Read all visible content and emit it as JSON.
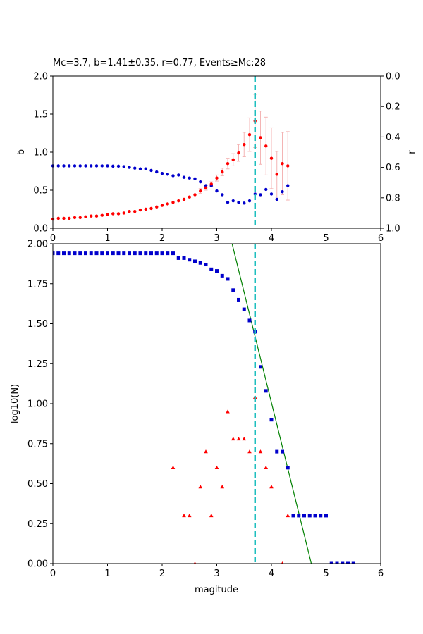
{
  "chart_data": [
    {
      "type": "scatter",
      "title": "Mc=3.7, b=1.41±0.35, r=0.77, Events≥Mc:28",
      "xlabel": "",
      "ylabel": "b",
      "ylabel_right": "r",
      "xlim": [
        0,
        6
      ],
      "ylim": [
        0,
        2
      ],
      "ylim_right": [
        1,
        0
      ],
      "xticks": [
        "0",
        "1",
        "2",
        "3",
        "4",
        "5",
        "6"
      ],
      "yticks": [
        "0.0",
        "0.5",
        "1.0",
        "1.5",
        "2.0"
      ],
      "yticks_right": [
        "0.0",
        "0.2",
        "0.4",
        "0.6",
        "0.8",
        "1.0"
      ],
      "grid": false,
      "mc_line_x": 3.7,
      "colors": {
        "b": "#ff0000",
        "r": "#0000cc",
        "mc": "#1fbfbf",
        "err": "#f4b4b4"
      },
      "b_series": {
        "x": [
          0.0,
          0.1,
          0.2,
          0.3,
          0.4,
          0.5,
          0.6,
          0.7,
          0.8,
          0.9,
          1.0,
          1.1,
          1.2,
          1.3,
          1.4,
          1.5,
          1.6,
          1.7,
          1.8,
          1.9,
          2.0,
          2.1,
          2.2,
          2.3,
          2.4,
          2.5,
          2.6,
          2.7,
          2.8,
          2.9,
          3.0,
          3.1,
          3.2,
          3.3,
          3.4,
          3.5,
          3.6,
          3.7,
          3.8,
          3.9,
          4.0,
          4.1,
          4.2,
          4.3
        ],
        "y": [
          0.12,
          0.13,
          0.13,
          0.13,
          0.14,
          0.14,
          0.15,
          0.16,
          0.16,
          0.17,
          0.18,
          0.19,
          0.19,
          0.2,
          0.22,
          0.22,
          0.24,
          0.25,
          0.26,
          0.28,
          0.3,
          0.32,
          0.34,
          0.36,
          0.38,
          0.41,
          0.44,
          0.49,
          0.53,
          0.58,
          0.66,
          0.74,
          0.85,
          0.9,
          0.99,
          1.1,
          1.23,
          1.41,
          1.19,
          1.08,
          0.92,
          0.71,
          0.85,
          0.82
        ],
        "err": [
          0.005,
          0.005,
          0.005,
          0.005,
          0.005,
          0.005,
          0.005,
          0.005,
          0.005,
          0.01,
          0.01,
          0.01,
          0.01,
          0.01,
          0.01,
          0.01,
          0.01,
          0.01,
          0.01,
          0.01,
          0.01,
          0.01,
          0.01,
          0.02,
          0.02,
          0.02,
          0.02,
          0.03,
          0.03,
          0.03,
          0.04,
          0.05,
          0.07,
          0.08,
          0.11,
          0.16,
          0.22,
          0.35,
          0.35,
          0.38,
          0.4,
          0.3,
          0.41,
          0.45
        ]
      },
      "r_series": {
        "x": [
          0.0,
          0.1,
          0.2,
          0.3,
          0.4,
          0.5,
          0.6,
          0.7,
          0.8,
          0.9,
          1.0,
          1.1,
          1.2,
          1.3,
          1.4,
          1.5,
          1.6,
          1.7,
          1.8,
          1.9,
          2.0,
          2.1,
          2.2,
          2.3,
          2.4,
          2.5,
          2.6,
          2.7,
          2.8,
          2.9,
          3.0,
          3.1,
          3.2,
          3.3,
          3.4,
          3.5,
          3.6,
          3.7,
          3.8,
          3.9,
          4.0,
          4.1,
          4.2,
          4.3
        ],
        "y": [
          0.59,
          0.59,
          0.59,
          0.59,
          0.59,
          0.59,
          0.59,
          0.59,
          0.59,
          0.59,
          0.59,
          0.592,
          0.592,
          0.595,
          0.6,
          0.605,
          0.61,
          0.61,
          0.62,
          0.63,
          0.64,
          0.645,
          0.655,
          0.65,
          0.665,
          0.67,
          0.675,
          0.695,
          0.72,
          0.72,
          0.755,
          0.78,
          0.83,
          0.82,
          0.83,
          0.835,
          0.82,
          0.775,
          0.78,
          0.745,
          0.775,
          0.81,
          0.76,
          0.72
        ]
      }
    },
    {
      "type": "scatter",
      "title": "",
      "xlabel": "magitude",
      "ylabel": "log10(N)",
      "xlim": [
        0,
        6
      ],
      "ylim": [
        0,
        2
      ],
      "xticks": [
        "0",
        "1",
        "2",
        "3",
        "4",
        "5",
        "6"
      ],
      "yticks": [
        "0.00",
        "0.25",
        "0.50",
        "0.75",
        "1.00",
        "1.25",
        "1.50",
        "1.75",
        "2.00"
      ],
      "grid": false,
      "mc_line_x": 3.7,
      "colors": {
        "cumulative": "#0000cc",
        "incremental": "#ff0000",
        "fit": "#008000",
        "mc": "#1fbfbf"
      },
      "cumulative": {
        "x": [
          0.0,
          0.1,
          0.2,
          0.3,
          0.4,
          0.5,
          0.6,
          0.7,
          0.8,
          0.9,
          1.0,
          1.1,
          1.2,
          1.3,
          1.4,
          1.5,
          1.6,
          1.7,
          1.8,
          1.9,
          2.0,
          2.1,
          2.2,
          2.3,
          2.4,
          2.5,
          2.6,
          2.7,
          2.8,
          2.9,
          3.0,
          3.1,
          3.2,
          3.3,
          3.4,
          3.5,
          3.6,
          3.7,
          3.8,
          3.9,
          4.0,
          4.1,
          4.2,
          4.3,
          4.4,
          4.5,
          4.6,
          4.7,
          4.8,
          4.9,
          5.0,
          5.1,
          5.2,
          5.3,
          5.4,
          5.5
        ],
        "y": [
          1.94,
          1.94,
          1.94,
          1.94,
          1.94,
          1.94,
          1.94,
          1.94,
          1.94,
          1.94,
          1.94,
          1.94,
          1.94,
          1.94,
          1.94,
          1.94,
          1.94,
          1.94,
          1.94,
          1.94,
          1.94,
          1.94,
          1.94,
          1.91,
          1.91,
          1.9,
          1.89,
          1.88,
          1.87,
          1.84,
          1.83,
          1.8,
          1.78,
          1.71,
          1.65,
          1.59,
          1.52,
          1.45,
          1.23,
          1.08,
          0.9,
          0.7,
          0.7,
          0.6,
          0.3,
          0.3,
          0.3,
          0.3,
          0.3,
          0.3,
          0.3,
          0.0,
          0.0,
          0.0,
          0.0,
          0.0
        ]
      },
      "incremental": {
        "x": [
          2.2,
          2.4,
          2.5,
          2.6,
          2.7,
          2.8,
          2.9,
          3.0,
          3.1,
          3.2,
          3.3,
          3.4,
          3.5,
          3.6,
          3.7,
          3.8,
          3.9,
          4.0,
          4.2,
          4.3
        ],
        "y": [
          0.6,
          0.3,
          0.3,
          0.0,
          0.48,
          0.7,
          0.3,
          0.6,
          0.48,
          0.95,
          0.78,
          0.78,
          0.78,
          0.7,
          1.04,
          0.7,
          0.6,
          0.48,
          0.0,
          0.3
        ]
      },
      "fit_line": {
        "x": [
          3.28,
          4.73
        ],
        "y": [
          2.0,
          0.0
        ]
      }
    }
  ]
}
